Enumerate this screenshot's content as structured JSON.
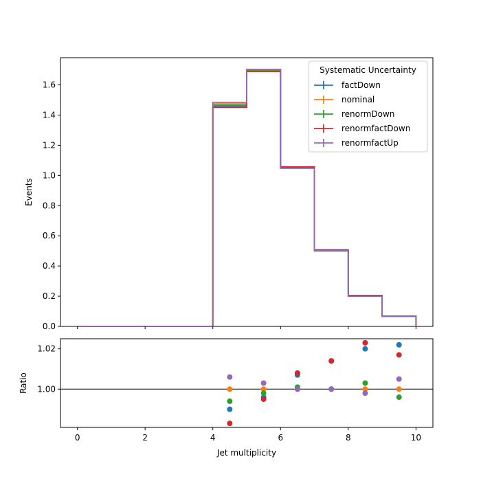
{
  "chart_data": {
    "type": "step-histogram-with-ratio",
    "bin_edges": [
      0,
      1,
      2,
      3,
      4,
      5,
      6,
      7,
      8,
      9,
      10
    ],
    "legend": {
      "title": "Systematic Uncertainty",
      "placement": "upper right"
    },
    "series": [
      {
        "name": "factDown",
        "color": "#1f77b4",
        "values": [
          0,
          0,
          0,
          0,
          1.46,
          1.69,
          1.055,
          0.507,
          0.204,
          0.068
        ],
        "ratio": [
          null,
          null,
          null,
          null,
          0.99,
          0.996,
          1.007,
          1.014,
          1.02,
          1.022
        ]
      },
      {
        "name": "nominal",
        "color": "#ff7f0e",
        "values": [
          0,
          0,
          0,
          0,
          1.475,
          1.697,
          1.048,
          0.5,
          0.2,
          0.067
        ],
        "ratio": [
          null,
          null,
          null,
          null,
          1.0,
          1.0,
          1.0,
          1.0,
          1.0,
          1.0
        ]
      },
      {
        "name": "renormDown",
        "color": "#2ca02c",
        "values": [
          0,
          0,
          0,
          0,
          1.466,
          1.693,
          1.049,
          0.5,
          0.201,
          0.066
        ],
        "ratio": [
          null,
          null,
          null,
          null,
          0.994,
          0.998,
          1.001,
          1.0,
          1.003,
          0.996
        ]
      },
      {
        "name": "renormfactDown",
        "color": "#d62728",
        "values": [
          0,
          0,
          0,
          0,
          1.451,
          1.689,
          1.057,
          0.507,
          0.205,
          0.068
        ],
        "ratio": [
          null,
          null,
          null,
          null,
          0.983,
          0.995,
          1.008,
          1.014,
          1.023,
          1.017
        ]
      },
      {
        "name": "renormfactUp",
        "color": "#9467bd",
        "values": [
          0,
          0,
          0,
          0,
          1.484,
          1.703,
          1.048,
          0.501,
          0.199,
          0.067
        ],
        "ratio": [
          null,
          null,
          null,
          null,
          1.006,
          1.003,
          1.0,
          1.0,
          0.998,
          1.005
        ]
      }
    ],
    "top_panel": {
      "ylabel": "Events",
      "xlim": [
        -0.5,
        10.5
      ],
      "ylim": [
        0,
        1.78
      ],
      "yticks": [
        0.0,
        0.2,
        0.4,
        0.6,
        0.8,
        1.0,
        1.2,
        1.4,
        1.6
      ],
      "ytick_labels": [
        "0.0",
        "0.2",
        "0.4",
        "0.6",
        "0.8",
        "1.0",
        "1.2",
        "1.4",
        "1.6"
      ]
    },
    "ratio_panel": {
      "ylabel": "Ratio",
      "xlabel": "Jet multiplicity",
      "ylim": [
        0.981,
        1.025
      ],
      "yticks": [
        1.0,
        1.02
      ],
      "ytick_labels": [
        "1.00",
        "1.02"
      ],
      "reference_line": 1.0
    },
    "xticks": [
      0,
      2,
      4,
      6,
      8,
      10
    ],
    "xtick_labels": [
      "0",
      "2",
      "4",
      "6",
      "8",
      "10"
    ],
    "grid": false
  }
}
